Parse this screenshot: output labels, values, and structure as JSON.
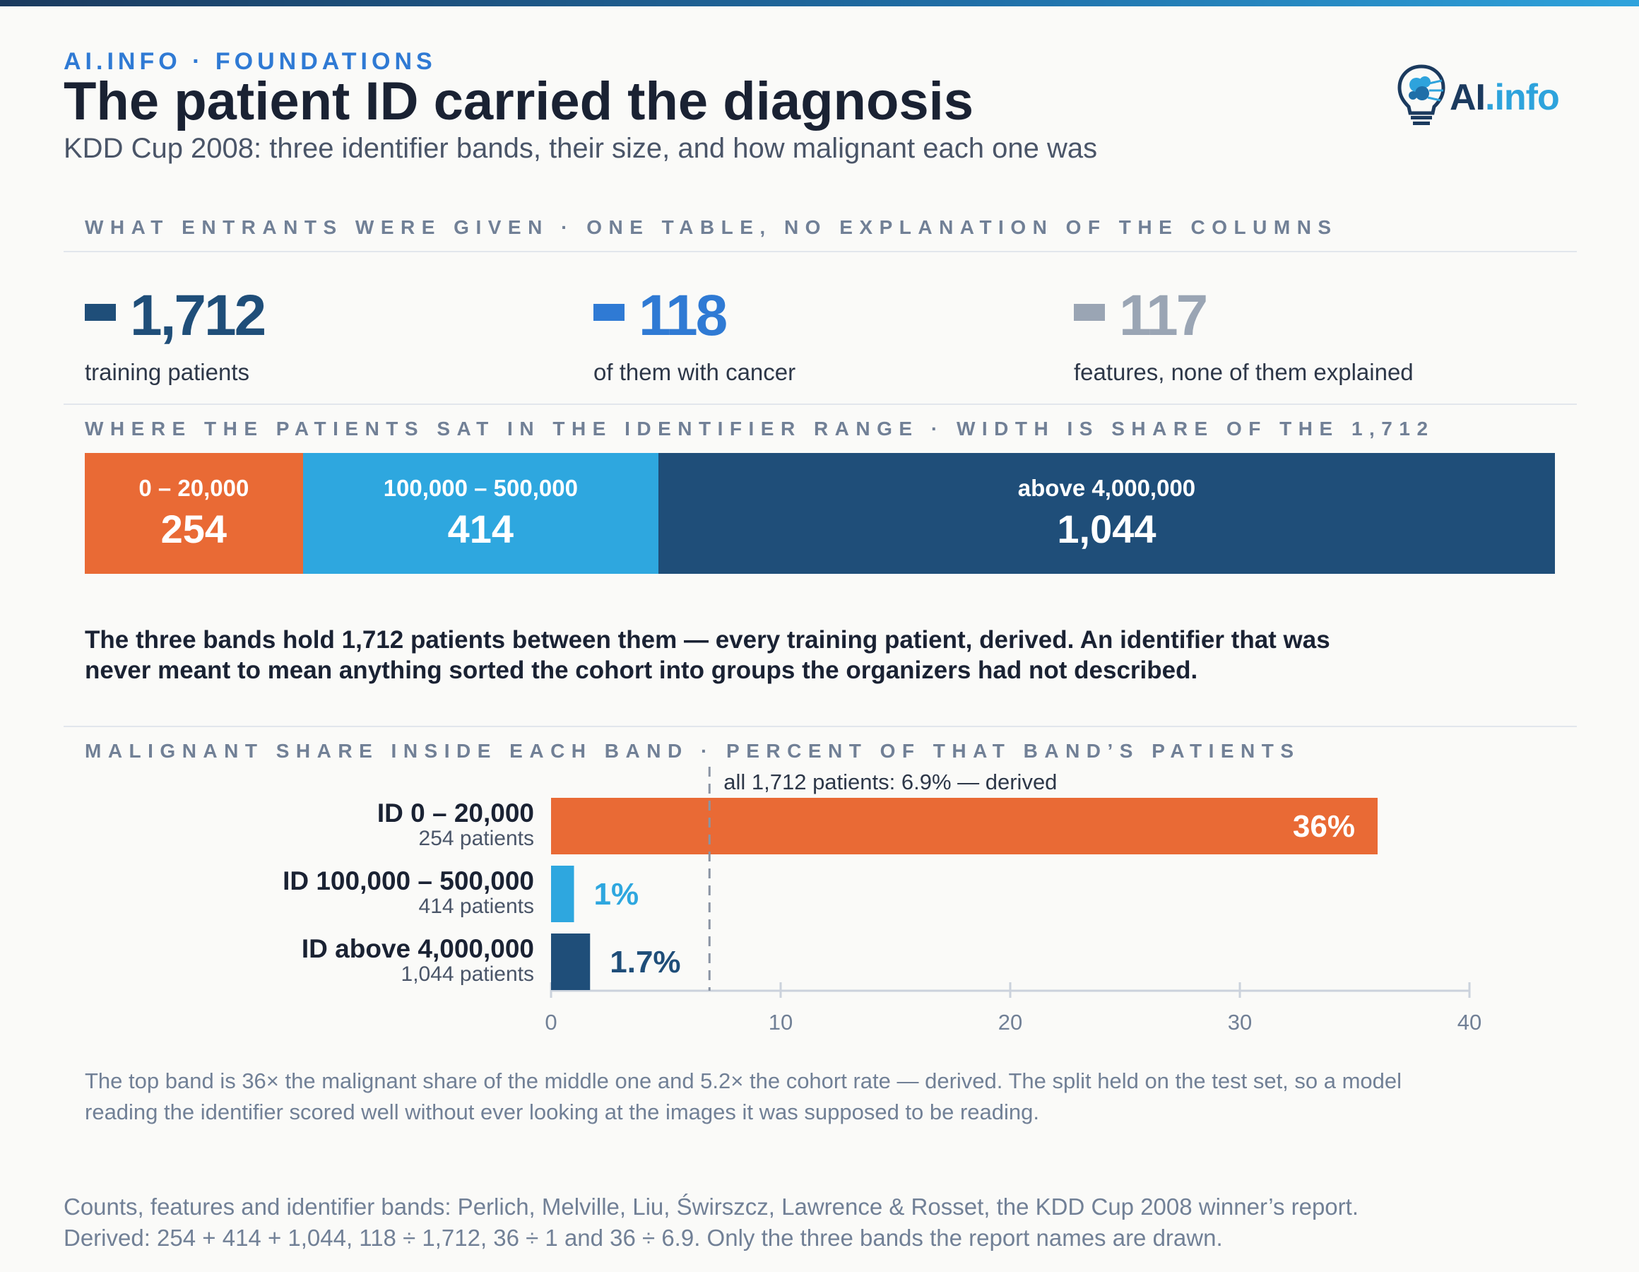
{
  "header": {
    "eyebrow": "AI.INFO · FOUNDATIONS",
    "title": "The patient ID carried the diagnosis",
    "subtitle": "KDD Cup 2008: three identifier bands, their size, and how malignant each one was",
    "logo_ai": "AI",
    "logo_info": ".info"
  },
  "colors": {
    "navy": "#1f4e79",
    "blue": "#2f7ad4",
    "gray": "#9aa5b4",
    "orange": "#e96a35",
    "sky": "#2ea7df"
  },
  "given": {
    "section_label": "WHAT ENTRANTS WERE GIVEN · ONE TABLE, NO EXPLANATION OF THE COLUMNS",
    "stats": [
      {
        "value": "1,712",
        "label": "training patients",
        "color": "#1f4e79"
      },
      {
        "value": "118",
        "label": "of them with cancer",
        "color": "#2f7ad4"
      },
      {
        "value": "117",
        "label": "features, none of them explained",
        "color": "#9aa5b4"
      }
    ]
  },
  "bands": {
    "section_label": "WHERE THE PATIENTS SAT IN THE IDENTIFIER RANGE · WIDTH IS SHARE OF THE 1,712",
    "items": [
      {
        "range": "0 – 20,000",
        "count": "254",
        "value": 254,
        "color": "#e96a35"
      },
      {
        "range": "100,000 – 500,000",
        "count": "414",
        "value": 414,
        "color": "#2ea7df"
      },
      {
        "range": "above 4,000,000",
        "count": "1,044",
        "value": 1044,
        "color": "#1f4e79"
      }
    ],
    "note": "The three bands hold 1,712 patients between them — every training patient, derived. An identifier that was never meant to mean anything sorted the cohort into groups the organizers had not described."
  },
  "malignant": {
    "section_label": "MALIGNANT SHARE INSIDE EACH BAND · PERCENT OF THAT BAND’S PATIENTS",
    "caption": "The top band is 36× the malignant share of the middle one and 5.2× the cohort rate — derived. The split held on the test set, so a model reading the identifier scored well without ever looking at the images it was supposed to be reading."
  },
  "chart_data": {
    "type": "bar",
    "orientation": "horizontal",
    "categories": [
      "ID 0 – 20,000",
      "ID 100,000 – 500,000",
      "ID above 4,000,000"
    ],
    "sublabels": [
      "254 patients",
      "414 patients",
      "1,044 patients"
    ],
    "values": [
      36,
      1,
      1.7
    ],
    "value_labels": [
      "36%",
      "1%",
      "1.7%"
    ],
    "colors": [
      "#e96a35",
      "#2ea7df",
      "#1f4e79"
    ],
    "xlim": [
      0,
      40
    ],
    "xticks": [
      0,
      10,
      20,
      30,
      40
    ],
    "reference": {
      "value": 6.9,
      "label": "all 1,712 patients: 6.9% — derived"
    },
    "xlabel": "",
    "ylabel": ""
  },
  "footer": {
    "line1": "Counts, features and identifier bands: Perlich, Melville, Liu, Świrszcz, Lawrence & Rosset, the KDD Cup 2008 winner’s report.",
    "line2": "Derived: 254 + 414 + 1,044, 118 ÷ 1,712, 36 ÷ 1 and 36 ÷ 6.9. Only the three bands the report names are drawn."
  }
}
